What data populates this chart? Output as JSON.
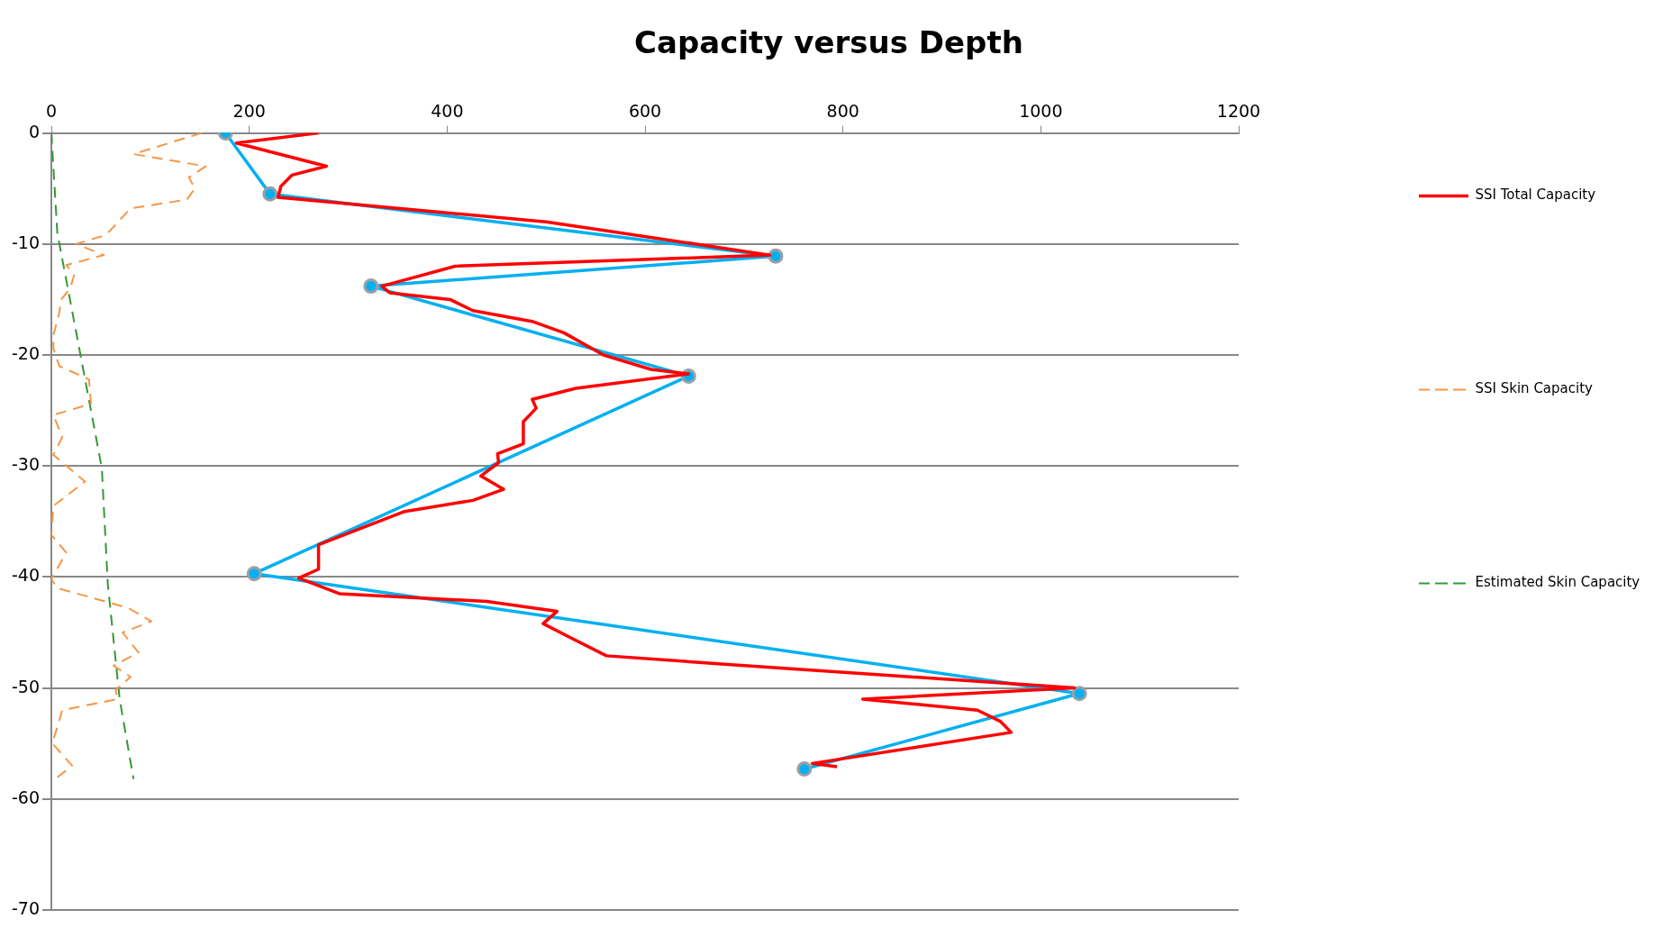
{
  "chart_data": {
    "type": "line",
    "title": "Capacity versus Depth",
    "legend": "right",
    "grid": "y",
    "xlim": [
      0,
      1200
    ],
    "xticks": [
      0,
      200,
      400,
      600,
      800,
      1000,
      1200
    ],
    "ylim": [
      -70,
      0
    ],
    "yticks": [
      0,
      -10,
      -20,
      -30,
      -40,
      -50,
      -60,
      -70
    ],
    "series": [
      {
        "name": "SSI Total Capacity",
        "color": "#ff0000",
        "line_style": "solid",
        "marker": "none",
        "x": [
          270,
          187,
          278,
          243,
          232,
          229,
          500,
          726,
          408,
          334,
          342,
          403,
          426,
          487,
          518,
          558,
          606,
          644,
          530,
          486,
          490,
          477,
          477,
          451,
          452,
          434,
          457,
          426,
          357,
          270,
          270,
          250,
          291,
          440,
          511,
          497,
          521,
          561,
          687,
          1034,
          820,
          936,
          959,
          970,
          769,
          794
        ],
        "values": [
          0,
          -0.9,
          -3,
          -3.8,
          -4.8,
          -5.8,
          -8,
          -11,
          -12,
          -13.8,
          -14.4,
          -15,
          -16,
          -17,
          -18,
          -20,
          -21.3,
          -21.7,
          -23,
          -24,
          -24.8,
          -26,
          -28,
          -28.9,
          -29.7,
          -30.9,
          -32.1,
          -33.1,
          -34.1,
          -37.1,
          -39.3,
          -40.1,
          -41.5,
          -42.2,
          -43.1,
          -44.2,
          -45.3,
          -47.1,
          -47.9,
          -50,
          -51,
          -52,
          -53,
          -54,
          -56.8,
          -57.1
        ]
      },
      {
        "name": "SSI Skin Capacity",
        "color": "#f79646",
        "line_style": "dashed",
        "marker": "none",
        "x": [
          152,
          83,
          156,
          139,
          145,
          137,
          80,
          55,
          25,
          53,
          15,
          23,
          19,
          10,
          8,
          2,
          2,
          8,
          38,
          40,
          2,
          11,
          2,
          34,
          2,
          0,
          15,
          0,
          6,
          78,
          101,
          72,
          88,
          63,
          80,
          65,
          67,
          11,
          1,
          21,
          1
        ],
        "values": [
          0,
          -1.9,
          -3,
          -4,
          -5,
          -6,
          -6.8,
          -9.2,
          -10,
          -11,
          -11.9,
          -12.8,
          -14,
          -15,
          -16.2,
          -18.2,
          -19.4,
          -21,
          -22.2,
          -24.4,
          -25.4,
          -27.4,
          -29,
          -31.4,
          -33.6,
          -36.2,
          -37.8,
          -40.2,
          -41,
          -42.8,
          -44,
          -45,
          -46.8,
          -48,
          -49,
          -50.2,
          -51,
          -52,
          -55,
          -57,
          -58.4
        ]
      },
      {
        "name": "Estimated Skin Capacity",
        "color": "#339933",
        "line_style": "dashed",
        "marker": "none",
        "x": [
          0,
          6,
          29,
          51,
          57,
          69,
          83
        ],
        "values": [
          0,
          -9,
          -19.8,
          -30.2,
          -40.6,
          -51,
          -58.2
        ]
      },
      {
        "color": "#00b0f0",
        "line_style": "solid",
        "marker": "circle",
        "x": [
          176,
          221,
          732,
          323,
          644,
          205,
          1039,
          761
        ],
        "values": [
          0,
          -5.5,
          -11.1,
          -13.8,
          -21.9,
          -39.7,
          -50.5,
          -57.3
        ]
      }
    ]
  }
}
